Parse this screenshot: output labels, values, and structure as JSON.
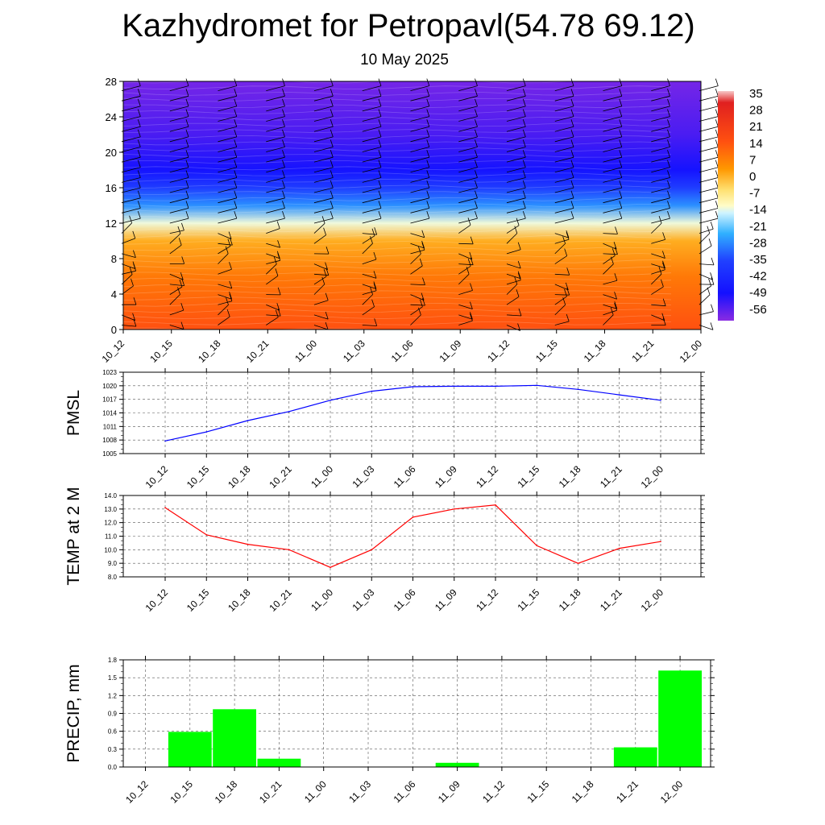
{
  "page": {
    "title": "Kazhydromet for Petropavl(54.78 69.12)",
    "subtitle": "10 May 2025"
  },
  "colors": {
    "pmsl_line": "#0000ff",
    "temp_line": "#ff0000",
    "precip_bar": "#00ff00",
    "wind_barb": "#000000"
  },
  "chart_data": [
    {
      "type": "heatmap",
      "name": "cross-section",
      "x_tick_labels": [
        "10_12",
        "10_15",
        "10_18",
        "10_21",
        "11_00",
        "11_03",
        "11_06",
        "11_09",
        "11_12",
        "11_15",
        "11_18",
        "11_21",
        "12_00"
      ],
      "y_ticks": [
        0,
        4,
        8,
        12,
        16,
        20,
        24,
        28
      ],
      "ylim": [
        0,
        28
      ],
      "colorbar_labels": [
        "35",
        "28",
        "21",
        "14",
        "7",
        "0",
        "-7",
        "-14",
        "-21",
        "-28",
        "-35",
        "-42",
        "-49",
        "-56"
      ],
      "temperature_profile": [
        {
          "level": 0,
          "value": 14
        },
        {
          "level": 6,
          "value": 10
        },
        {
          "level": 10,
          "value": 5
        },
        {
          "level": 12,
          "value": -8
        },
        {
          "level": 14,
          "value": -25
        },
        {
          "level": 16,
          "value": -36
        },
        {
          "level": 18,
          "value": -48
        },
        {
          "level": 22,
          "value": -54
        },
        {
          "level": 28,
          "value": -58
        }
      ],
      "wind_barbs": true,
      "grid": false
    },
    {
      "type": "line",
      "name": "pmsl",
      "ylabel": "PMSL",
      "categories": [
        "10_12",
        "10_15",
        "10_18",
        "10_21",
        "11_00",
        "11_03",
        "11_06",
        "11_09",
        "11_12",
        "11_15",
        "11_18",
        "11_21",
        "12_00"
      ],
      "values": [
        1007.8,
        1009.8,
        1012.3,
        1014.3,
        1016.8,
        1018.8,
        1019.8,
        1019.9,
        1019.9,
        1020.1,
        1019.2,
        1018.0,
        1016.8
      ],
      "y_ticks": [
        "1005",
        "1008",
        "1011",
        "1014",
        "1017",
        "1020",
        "1023"
      ],
      "ylim": [
        1005,
        1023
      ],
      "grid": true
    },
    {
      "type": "line",
      "name": "temp",
      "ylabel": "TEMP at 2 M",
      "categories": [
        "10_12",
        "10_15",
        "10_18",
        "10_21",
        "11_00",
        "11_03",
        "11_06",
        "11_09",
        "11_12",
        "11_15",
        "11_18",
        "11_21",
        "12_00"
      ],
      "values": [
        13.1,
        11.1,
        10.4,
        10.0,
        8.7,
        10.0,
        12.4,
        13.0,
        13.3,
        10.3,
        9.0,
        10.1,
        10.6
      ],
      "y_ticks": [
        "8.0",
        "9.0",
        "10.0",
        "11.0",
        "12.0",
        "13.0",
        "14.0"
      ],
      "ylim": [
        8,
        14
      ],
      "grid": true
    },
    {
      "type": "bar",
      "name": "precip",
      "ylabel": "PRECIP, mm",
      "categories": [
        "10_12",
        "10_15",
        "10_18",
        "10_21",
        "11_00",
        "11_03",
        "11_06",
        "11_09",
        "11_12",
        "11_15",
        "11_18",
        "11_21",
        "12_00"
      ],
      "values": [
        0,
        0.59,
        0.97,
        0.14,
        0,
        0,
        0,
        0.07,
        0,
        0,
        0,
        0.33,
        1.62
      ],
      "y_ticks": [
        "0.0",
        "0.3",
        "0.6",
        "0.9",
        "1.2",
        "1.5",
        "1.8"
      ],
      "ylim": [
        0,
        1.8
      ],
      "grid": true
    }
  ]
}
